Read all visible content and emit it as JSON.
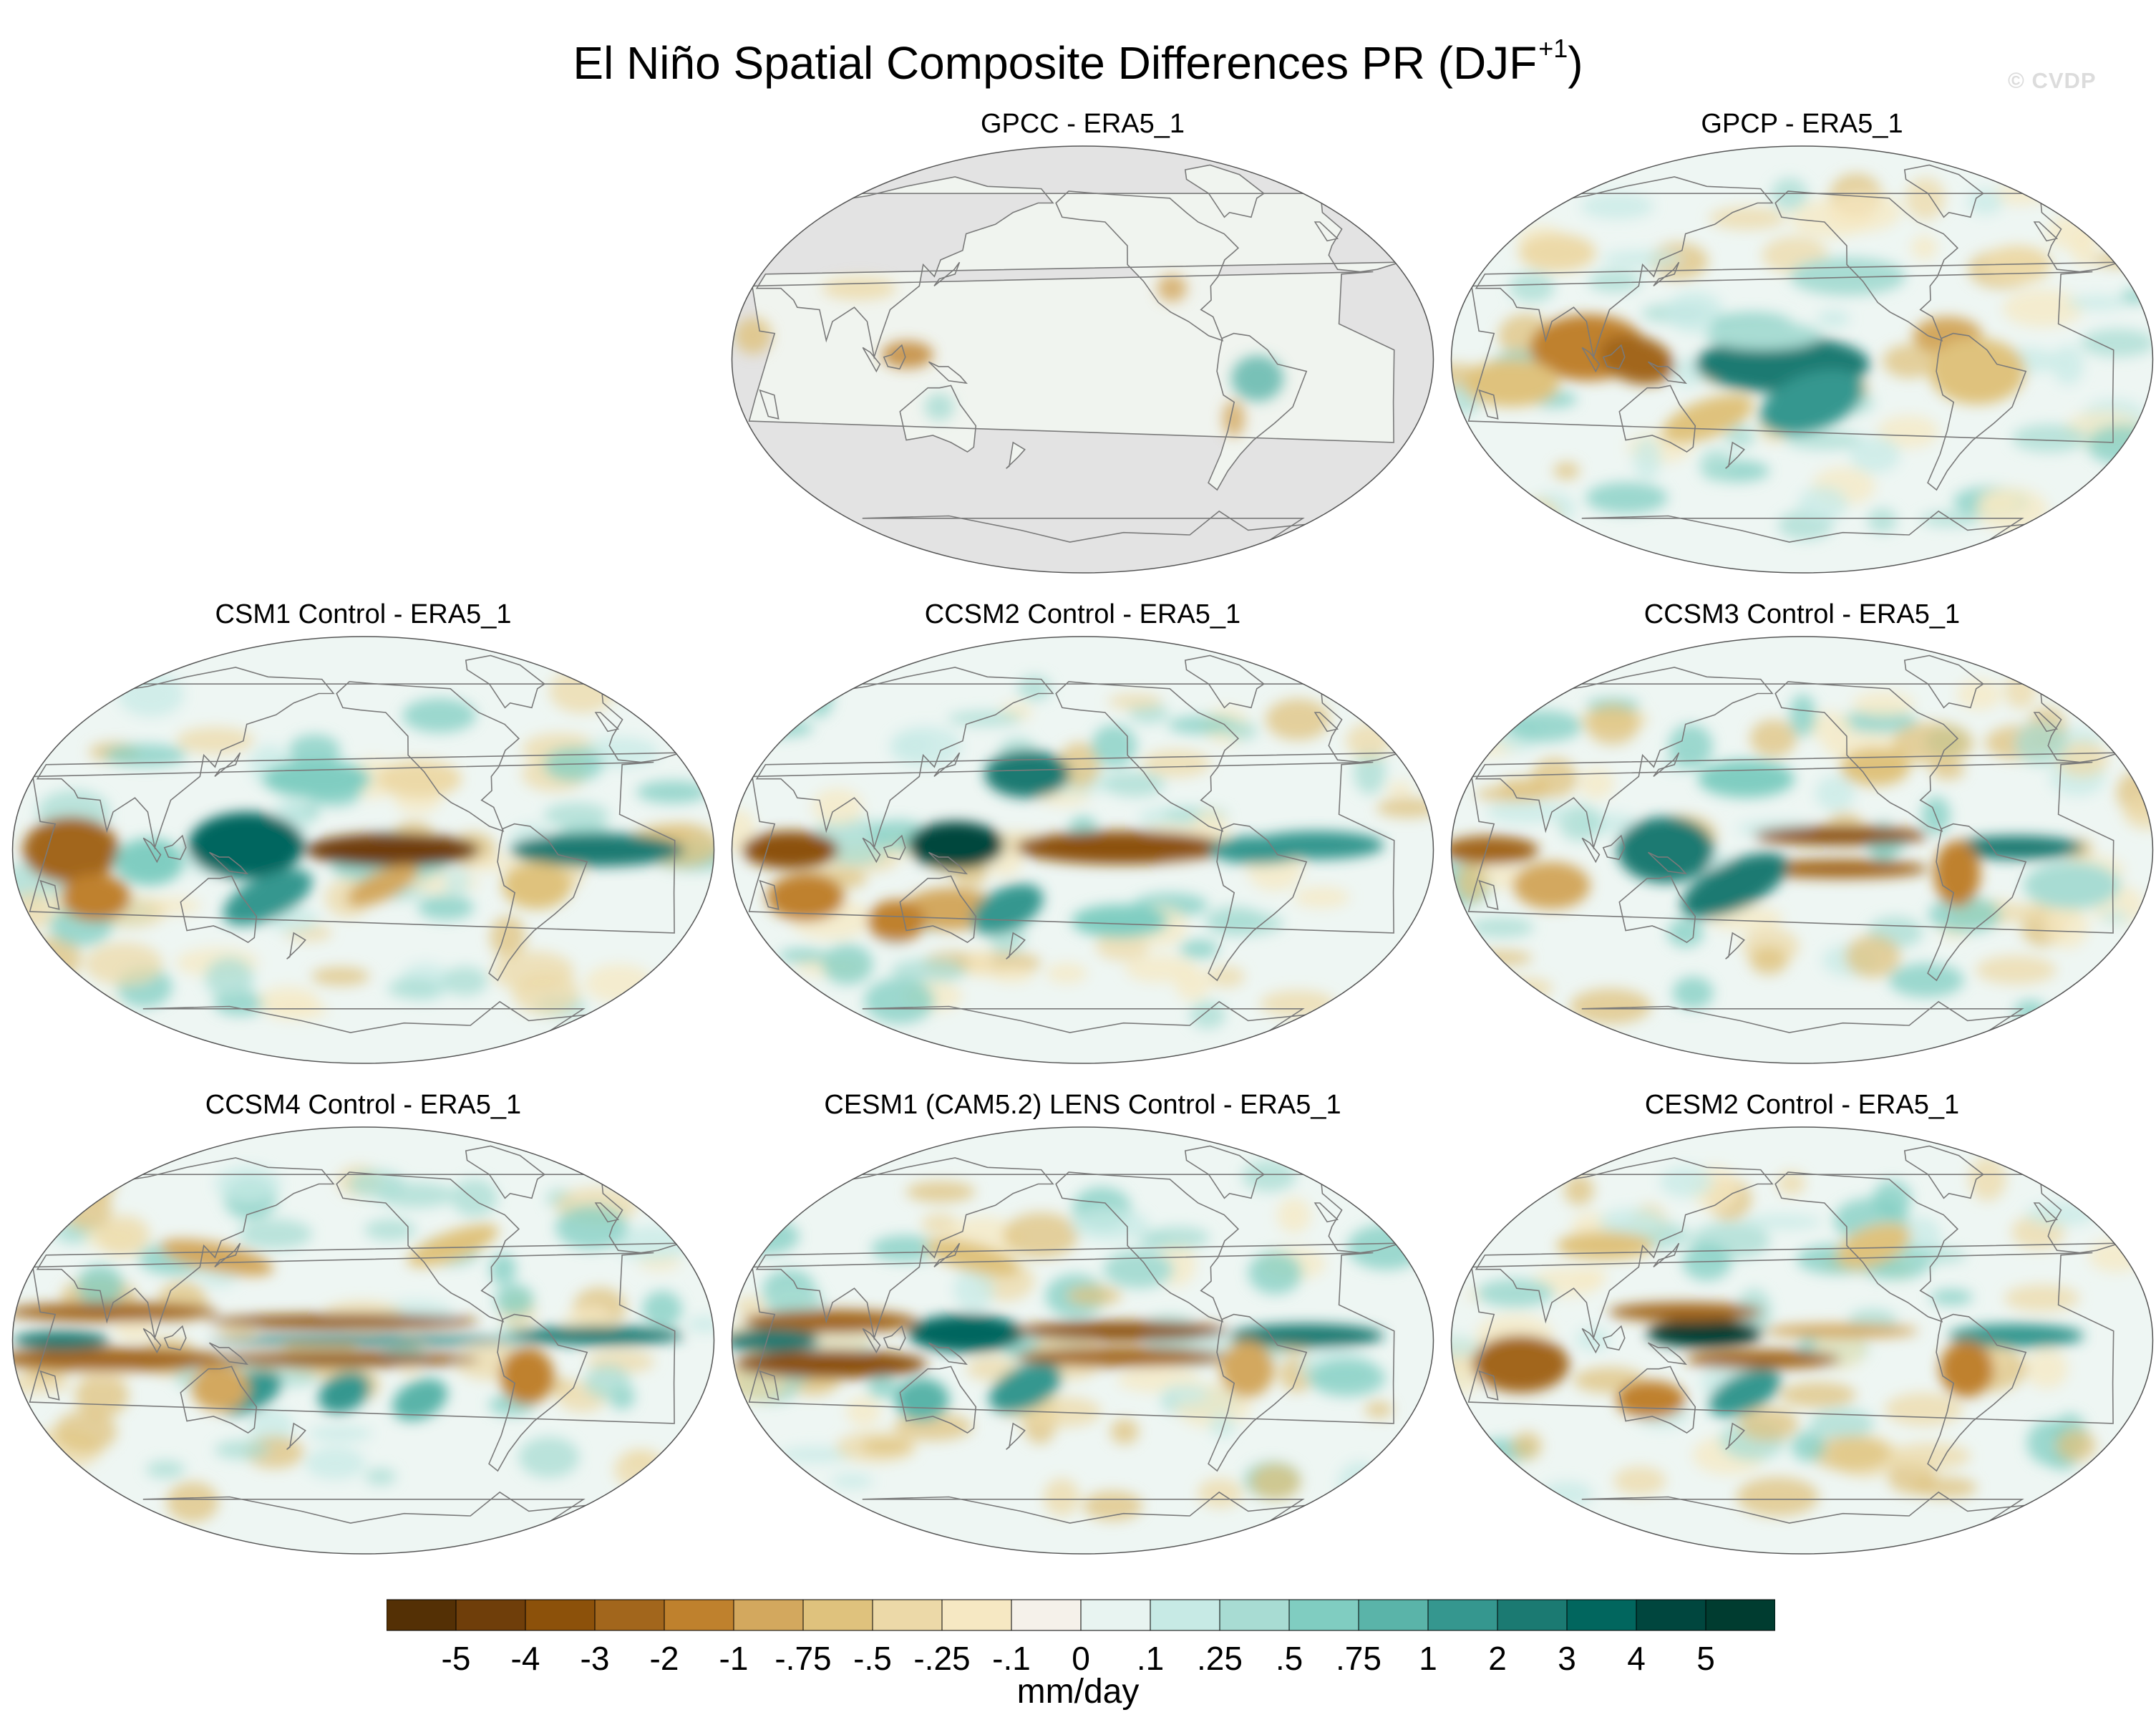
{
  "figure": {
    "title": "El Niño Spatial Composite Differences PR (DJF",
    "title_sup": "+1",
    "title_close": ")",
    "watermark": "© CVDP"
  },
  "panels": [
    {
      "id": "gpcc",
      "title": "GPCC - ERA5_1",
      "kind": "land_only"
    },
    {
      "id": "gpcp",
      "title": "GPCP - ERA5_1",
      "kind": "obs"
    },
    {
      "id": "csm1",
      "title": "CSM1 Control - ERA5_1",
      "kind": "model_a"
    },
    {
      "id": "ccsm2",
      "title": "CCSM2 Control - ERA5_1",
      "kind": "model_b"
    },
    {
      "id": "ccsm3",
      "title": "CCSM3 Control - ERA5_1",
      "kind": "model_c"
    },
    {
      "id": "ccsm4",
      "title": "CCSM4 Control - ERA5_1",
      "kind": "model_d"
    },
    {
      "id": "cesm1",
      "title": "CESM1 (CAM5.2) LENS Control - ERA5_1",
      "kind": "model_e"
    },
    {
      "id": "cesm2",
      "title": "CESM2 Control - ERA5_1",
      "kind": "model_f"
    }
  ],
  "colorbar": {
    "units": "mm/day",
    "labels": [
      "-5",
      "-4",
      "-3",
      "-2",
      "-1",
      "-.75",
      "-.5",
      "-.25",
      "-.1",
      "0",
      ".1",
      ".25",
      ".5",
      ".75",
      "1",
      "2",
      "3",
      "4",
      "5"
    ],
    "colors": [
      "#543005",
      "#6f3e0a",
      "#8c510a",
      "#a2661c",
      "#bf812d",
      "#d3a85e",
      "#dfc27d",
      "#ecd9a8",
      "#f6e8c3",
      "#f5f1ea",
      "#e8f4f1",
      "#c7eae5",
      "#a8dcd3",
      "#80cdc1",
      "#5ab4a9",
      "#35978f",
      "#1b7a72",
      "#01665e",
      "#00463e",
      "#003c30"
    ]
  },
  "colors": {
    "land_mask": "#e3e3e3",
    "coastline": "#7a7a7a",
    "ocean_neutral": "#eef6f3"
  }
}
